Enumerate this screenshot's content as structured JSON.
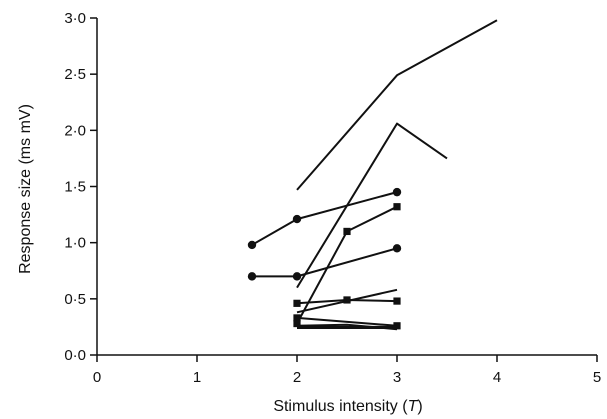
{
  "chart_data": {
    "type": "line",
    "xlabel_prefix": "Stimulus intensity (",
    "xlabel_var": "T",
    "xlabel_suffix": ")",
    "ylabel": "Response size (ms mV)",
    "xlim": [
      0,
      5
    ],
    "ylim": [
      0,
      3
    ],
    "x_ticks": [
      0,
      1,
      2,
      3,
      4,
      5
    ],
    "x_tick_labels": [
      "0",
      "1",
      "2",
      "3",
      "4",
      "5"
    ],
    "y_ticks": [
      0,
      0.5,
      1,
      1.5,
      2,
      2.5,
      3
    ],
    "y_tick_labels": [
      "0·0",
      "0·5",
      "1·0",
      "1·5",
      "2·0",
      "2·5",
      "3·0"
    ],
    "grid": false,
    "color": "#111111",
    "series": [
      {
        "marker": "none",
        "points": [
          [
            2,
            1.47
          ],
          [
            3,
            2.49
          ],
          [
            4,
            2.98
          ]
        ]
      },
      {
        "marker": "none",
        "points": [
          [
            2,
            0.6
          ],
          [
            3,
            2.06
          ],
          [
            3.5,
            1.75
          ]
        ]
      },
      {
        "marker": "circle",
        "points": [
          [
            1.55,
            0.98
          ],
          [
            2,
            1.21
          ],
          [
            3,
            1.45
          ]
        ]
      },
      {
        "marker": "square",
        "points": [
          [
            2,
            0.28
          ],
          [
            2.5,
            1.1
          ],
          [
            3,
            1.32
          ]
        ]
      },
      {
        "marker": "circle",
        "points": [
          [
            1.55,
            0.7
          ],
          [
            2,
            0.7
          ],
          [
            3,
            0.95
          ]
        ]
      },
      {
        "marker": "none",
        "points": [
          [
            2,
            0.38
          ],
          [
            3,
            0.58
          ]
        ]
      },
      {
        "marker": "square",
        "points": [
          [
            2,
            0.46
          ],
          [
            2.5,
            0.49
          ],
          [
            3,
            0.48
          ]
        ]
      },
      {
        "marker": "square",
        "points": [
          [
            2,
            0.33
          ],
          [
            3,
            0.26
          ]
        ]
      },
      {
        "marker": "none",
        "points": [
          [
            2,
            0.25
          ],
          [
            3,
            0.25
          ]
        ]
      },
      {
        "marker": "none",
        "points": [
          [
            2,
            0.26
          ],
          [
            2.5,
            0.27
          ],
          [
            3,
            0.23
          ]
        ]
      },
      {
        "marker": "none",
        "points": [
          [
            2,
            0.24
          ],
          [
            3,
            0.24
          ]
        ]
      }
    ]
  }
}
